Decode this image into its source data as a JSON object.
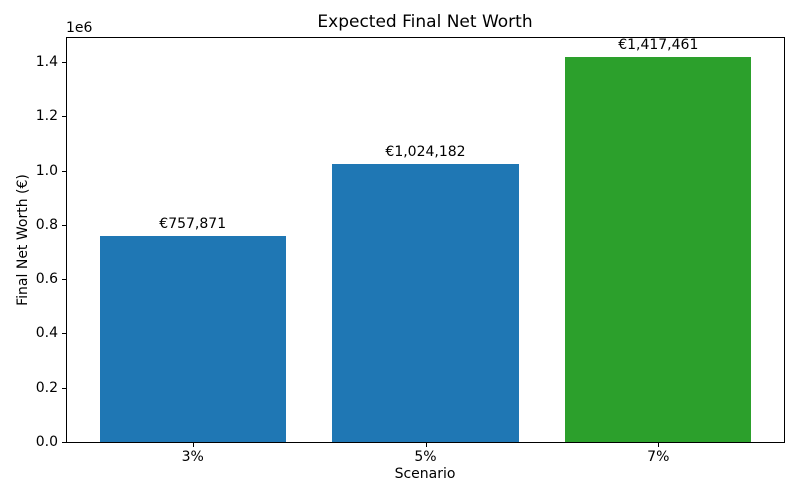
{
  "chart_data": {
    "type": "bar",
    "title": "Expected Final Net Worth",
    "xlabel": "Scenario",
    "ylabel": "Final Net Worth (€)",
    "categories": [
      "3%",
      "5%",
      "7%"
    ],
    "values": [
      757871,
      1024182,
      1417461
    ],
    "bar_labels": [
      "€757,871",
      "€1,024,182",
      "€1,417,461"
    ],
    "bar_colors": [
      "#1f77b4",
      "#1f77b4",
      "#2ca02c"
    ],
    "y_offset_text": "1e6",
    "yticks": [
      0,
      200000,
      400000,
      600000,
      800000,
      1000000,
      1200000,
      1400000
    ],
    "ytick_labels": [
      "0.0",
      "0.2",
      "0.4",
      "0.6",
      "0.8",
      "1.0",
      "1.2",
      "1.4"
    ],
    "ylim": [
      0,
      1488334
    ],
    "xlim": [
      -0.54,
      2.54
    ],
    "bar_width": 0.8,
    "grid": false,
    "legend_position": "none",
    "colors": {
      "blue_bar": "#1f77b4",
      "green_bar": "#2ca02c",
      "text": "#000000",
      "background": "#ffffff"
    }
  }
}
